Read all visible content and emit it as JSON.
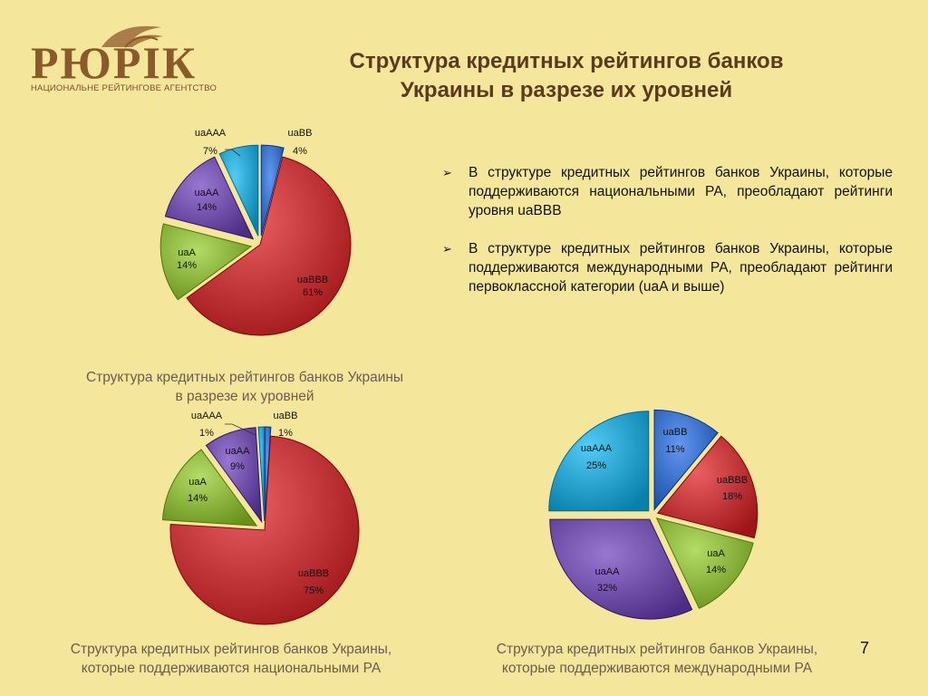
{
  "logo": {
    "name": "РЮРІК",
    "tagline": "НАЦИОНАЛЬНЕ РЕЙТИНГОВЕ АГЕНТСТВО"
  },
  "title": {
    "line1": "Структура кредитных рейтингов банков",
    "line2": "Украины в разрезе их уровней"
  },
  "bullets": [
    {
      "mark": "➢",
      "text": "В структуре кредитных рейтингов банков Украины, которые поддерживаются национальными РА, преобладают рейтинги уровня uaBBB"
    },
    {
      "mark": "➢",
      "text": "В структуре кредитных рейтингов банков Украины, которые поддерживаются международными РА, преобладают рейтинги первоклассной категории (uaA и выше)"
    }
  ],
  "captions": {
    "chart1": {
      "line1": "Структура кредитных рейтингов банков Украины",
      "line2": "в разрезе их уровней"
    },
    "chart2": {
      "line1": "Структура кредитных рейтингов банков Украины,",
      "line2": "которые поддерживаются национальными РА"
    },
    "chart3": {
      "line1": "Структура кредитных рейтингов банков Украины,",
      "line2": "которые поддерживаются международными РА"
    }
  },
  "page_number": "7",
  "colors": {
    "uaBB": "#3a70c8",
    "uaBBB": "#c1373a",
    "uaA": "#8ab43e",
    "uaAA": "#6f4fa8",
    "uaAAA": "#2aa4cf"
  },
  "chart_data": [
    {
      "type": "pie",
      "categories": [
        "uaBB",
        "uaBBB",
        "uaA",
        "uaAA",
        "uaAAA"
      ],
      "values": [
        4,
        61,
        14,
        14,
        7
      ],
      "labels": [
        "4%",
        "61%",
        "14%",
        "14%",
        "7%"
      ]
    },
    {
      "type": "pie",
      "categories": [
        "uaBB",
        "uaBBB",
        "uaA",
        "uaAA",
        "uaAAA"
      ],
      "values": [
        1,
        75,
        14,
        9,
        1
      ],
      "labels": [
        "1%",
        "75%",
        "14%",
        "9%",
        "1%"
      ]
    },
    {
      "type": "pie",
      "categories": [
        "uaBB",
        "uaBBB",
        "uaA",
        "uaAA",
        "uaAAA"
      ],
      "values": [
        11,
        18,
        14,
        32,
        25
      ],
      "labels": [
        "11%",
        "18%",
        "14%",
        "32%",
        "25%"
      ]
    }
  ]
}
